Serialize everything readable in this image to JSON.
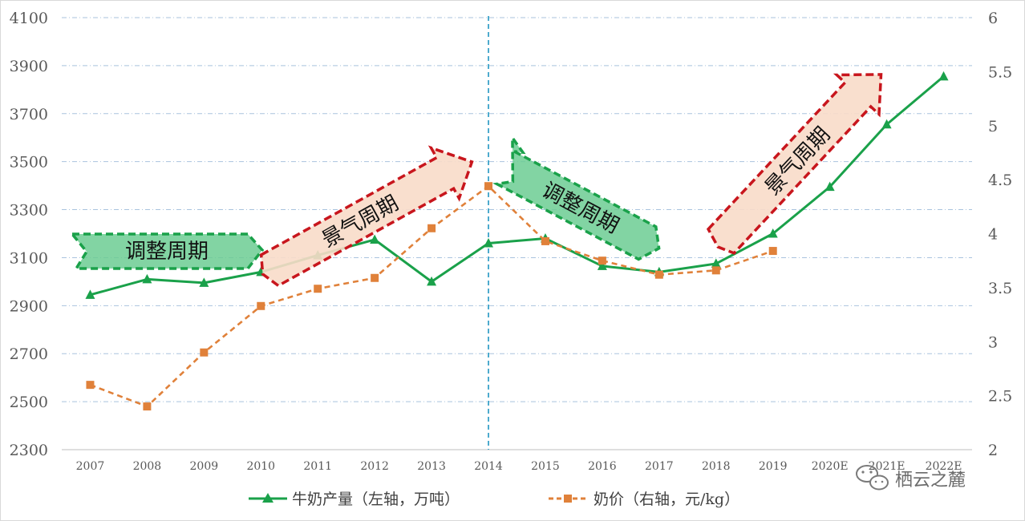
{
  "chart_data": {
    "type": "line",
    "categories": [
      "2007",
      "2008",
      "2009",
      "2010",
      "2011",
      "2012",
      "2013",
      "2014",
      "2015",
      "2016",
      "2017",
      "2018",
      "2019",
      "2020E",
      "2021E",
      "2022E"
    ],
    "y_left": {
      "ticks": [
        "2300",
        "2500",
        "2700",
        "2900",
        "3100",
        "3300",
        "3500",
        "3700",
        "3900",
        "4100"
      ],
      "range": [
        2300,
        4100
      ]
    },
    "y_right": {
      "ticks": [
        "2",
        "2.5",
        "3",
        "3.5",
        "4",
        "4.5",
        "5",
        "5.5",
        "6"
      ],
      "range": [
        2,
        6
      ]
    },
    "grid": true,
    "legend_position": "bottom",
    "series": [
      {
        "name": "牛奶产量（左轴，万吨）",
        "axis": "left",
        "color": "#1aa14a",
        "marker": "triangle",
        "dash": false,
        "values": [
          2945,
          3010,
          2995,
          3040,
          3110,
          3175,
          3000,
          3160,
          3180,
          3065,
          3040,
          3075,
          3200,
          3395,
          3655,
          3855
        ]
      },
      {
        "name": "奶价（右轴，元/kg）",
        "axis": "right",
        "color": "#e0813a",
        "marker": "square",
        "dash": true,
        "values": [
          2.6,
          2.4,
          2.9,
          3.33,
          3.49,
          3.59,
          4.05,
          4.44,
          3.93,
          3.75,
          3.62,
          3.66,
          3.84,
          null,
          null,
          null
        ]
      }
    ],
    "divider_at": "2014",
    "annotations": [
      {
        "label": "调整周期",
        "style": "green-dashed"
      },
      {
        "label": "景气周期",
        "style": "red-dashed"
      },
      {
        "label": "调整周期",
        "style": "green-dashed"
      },
      {
        "label": "景气周期",
        "style": "red-dashed"
      }
    ]
  },
  "colors": {
    "grid": "#a9c3de",
    "divider": "#3aa2c9",
    "green_fill": "#6ccc93",
    "green_stroke": "#1aa14a",
    "red_fill": "#f8dcc9",
    "red_stroke": "#c8161d"
  },
  "watermark": {
    "text": "栖云之麓",
    "icon": "wechat-icon"
  }
}
